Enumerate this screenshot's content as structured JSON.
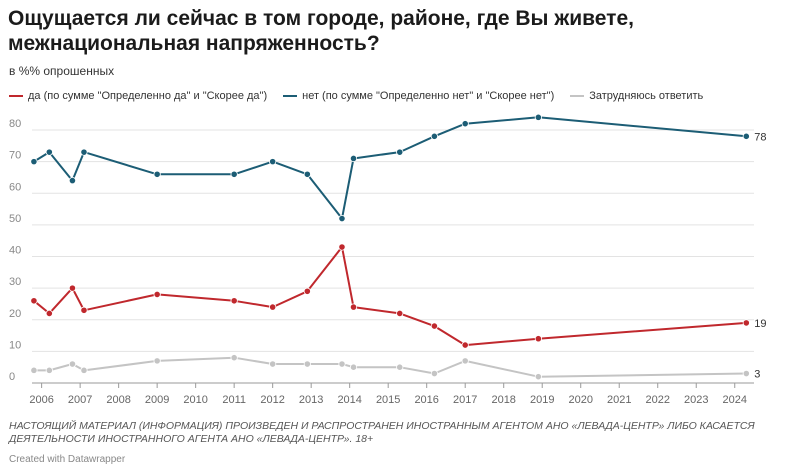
{
  "header": {
    "title": "Ощущается ли сейчас в том городе, районе, где Вы живете, межнациональная напряженность?",
    "subtitle": "в %% опрошенных"
  },
  "footer": {
    "note": "НАСТОЯЩИЙ МАТЕРИАЛ (ИНФОРМАЦИЯ) ПРОИЗВЕДЕН И РАСПРОСТРАНЕН ИНОСТРАННЫМ АГЕНТОМ АНО «ЛЕВАДА-ЦЕНТР» ЛИБО КАСАЕТСЯ ДЕЯТЕЛЬНОСТИ ИНОСТРАННОГО АГЕНТА АНО «ЛЕВАДА-ЦЕНТР». 18+",
    "credit": "Created with Datawrapper"
  },
  "chart_data": {
    "type": "line",
    "title": "Ощущается ли сейчас в том городе, районе, где Вы живете, межнациональная напряженность?",
    "subtitle": "в %% опрошенных",
    "xlabel": "",
    "ylabel": "",
    "xlim": [
      2005.75,
      2024.5
    ],
    "ylim": [
      0,
      80
    ],
    "yticks": [
      0,
      10,
      20,
      30,
      40,
      50,
      60,
      70,
      80
    ],
    "xticks": [
      2006,
      2007,
      2008,
      2009,
      2010,
      2011,
      2012,
      2013,
      2014,
      2015,
      2016,
      2017,
      2018,
      2019,
      2020,
      2021,
      2022,
      2023,
      2024
    ],
    "grid": "horizontal",
    "legend": "top-left",
    "series": [
      {
        "name": "да (по сумме \"Определенно да\" и \"Скорее да\")",
        "color": "#c0282d",
        "end_label": "19",
        "points": [
          [
            2005.8,
            26
          ],
          [
            2006.2,
            22
          ],
          [
            2006.8,
            30
          ],
          [
            2007.1,
            23
          ],
          [
            2009.0,
            28
          ],
          [
            2011.0,
            26
          ],
          [
            2012.0,
            24
          ],
          [
            2012.9,
            29
          ],
          [
            2013.8,
            43
          ],
          [
            2014.1,
            24
          ],
          [
            2015.3,
            22
          ],
          [
            2016.2,
            18
          ],
          [
            2017.0,
            12
          ],
          [
            2018.9,
            14
          ],
          [
            2024.3,
            19
          ]
        ]
      },
      {
        "name": "нет (по сумме \"Определенно нет\" и \"Скорее нет\")",
        "color": "#1c5d75",
        "end_label": "78",
        "points": [
          [
            2005.8,
            70
          ],
          [
            2006.2,
            73
          ],
          [
            2006.8,
            64
          ],
          [
            2007.1,
            73
          ],
          [
            2009.0,
            66
          ],
          [
            2011.0,
            66
          ],
          [
            2012.0,
            70
          ],
          [
            2012.9,
            66
          ],
          [
            2013.8,
            52
          ],
          [
            2014.1,
            71
          ],
          [
            2015.3,
            73
          ],
          [
            2016.2,
            78
          ],
          [
            2017.0,
            82
          ],
          [
            2018.9,
            84
          ],
          [
            2024.3,
            78
          ]
        ]
      },
      {
        "name": "Затрудняюсь ответить",
        "color": "#c4c4c4",
        "end_label": "3",
        "points": [
          [
            2005.8,
            4
          ],
          [
            2006.2,
            4
          ],
          [
            2006.8,
            6
          ],
          [
            2007.1,
            4
          ],
          [
            2009.0,
            7
          ],
          [
            2011.0,
            8
          ],
          [
            2012.0,
            6
          ],
          [
            2012.9,
            6
          ],
          [
            2013.8,
            6
          ],
          [
            2014.1,
            5
          ],
          [
            2015.3,
            5
          ],
          [
            2016.2,
            3
          ],
          [
            2017.0,
            7
          ],
          [
            2018.9,
            2
          ],
          [
            2024.3,
            3
          ]
        ]
      }
    ]
  }
}
